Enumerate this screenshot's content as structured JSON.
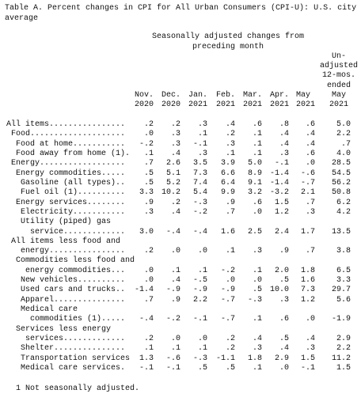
{
  "title": "Table A. Percent changes in CPI for All Urban Consumers (CPI-U): U.S. city average",
  "spanner": [
    "Seasonally adjusted changes from",
    "preceding month"
  ],
  "columns": [
    [
      "Nov.",
      "2020"
    ],
    [
      "Dec.",
      "2020"
    ],
    [
      "Jan.",
      "2021"
    ],
    [
      "Feb.",
      "2021"
    ],
    [
      "Mar.",
      "2021"
    ],
    [
      "Apr.",
      "2021"
    ],
    [
      "May",
      "2021"
    ],
    [
      "Un-",
      "adjusted",
      "12-mos.",
      "ended",
      "May",
      "2021"
    ]
  ],
  "rows": [
    {
      "label": [
        "All items................"
      ],
      "values": [
        ".2",
        ".2",
        ".3",
        ".4",
        ".6",
        ".8",
        ".6",
        "5.0"
      ]
    },
    {
      "label": [
        "Food...................."
      ],
      "values": [
        ".0",
        ".3",
        ".1",
        ".2",
        ".1",
        ".4",
        ".4",
        "2.2"
      ]
    },
    {
      "label": [
        "Food at home..........."
      ],
      "values": [
        "-.2",
        ".3",
        "-.1",
        ".3",
        ".1",
        ".4",
        ".4",
        ".7"
      ]
    },
    {
      "label": [
        "Food away from home (1)."
      ],
      "values": [
        ".1",
        ".4",
        ".3",
        ".1",
        ".1",
        ".3",
        ".6",
        "4.0"
      ]
    },
    {
      "label": [
        "Energy.................."
      ],
      "values": [
        ".7",
        "2.6",
        "3.5",
        "3.9",
        "5.0",
        "-.1",
        ".0",
        "28.5"
      ]
    },
    {
      "label": [
        "Energy commodities....."
      ],
      "values": [
        ".5",
        "5.1",
        "7.3",
        "6.6",
        "8.9",
        "-1.4",
        "-.6",
        "54.5"
      ]
    },
    {
      "label": [
        "Gasoline (all types).."
      ],
      "values": [
        ".5",
        "5.2",
        "7.4",
        "6.4",
        "9.1",
        "-1.4",
        "-.7",
        "56.2"
      ]
    },
    {
      "label": [
        "Fuel oil (1).........."
      ],
      "values": [
        "3.3",
        "10.2",
        "5.4",
        "9.9",
        "3.2",
        "-3.2",
        "2.1",
        "50.8"
      ]
    },
    {
      "label": [
        "Energy services........"
      ],
      "values": [
        ".9",
        ".2",
        "-.3",
        ".9",
        ".6",
        "1.5",
        ".7",
        "6.2"
      ]
    },
    {
      "label": [
        "Electricity..........."
      ],
      "values": [
        ".3",
        ".4",
        "-.2",
        ".7",
        ".0",
        "1.2",
        ".3",
        "4.2"
      ]
    },
    {
      "label": [
        "Utility (piped) gas",
        "service............."
      ],
      "values": [
        "3.0",
        "-.4",
        "-.4",
        "1.6",
        "2.5",
        "2.4",
        "1.7",
        "13.5"
      ]
    },
    {
      "label": [
        "All items less food and",
        "energy................"
      ],
      "values": [
        ".2",
        ".0",
        ".0",
        ".1",
        ".3",
        ".9",
        ".7",
        "3.8"
      ]
    },
    {
      "label": [
        "Commodities less food and",
        "energy commodities..."
      ],
      "values": [
        ".0",
        ".1",
        ".1",
        "-.2",
        ".1",
        "2.0",
        "1.8",
        "6.5"
      ]
    },
    {
      "label": [
        "New vehicles.........."
      ],
      "values": [
        ".0",
        ".4",
        "-.5",
        ".0",
        ".0",
        ".5",
        "1.6",
        "3.3"
      ]
    },
    {
      "label": [
        "Used cars and trucks.."
      ],
      "values": [
        "-1.4",
        "-.9",
        "-.9",
        "-.9",
        ".5",
        "10.0",
        "7.3",
        "29.7"
      ]
    },
    {
      "label": [
        "Apparel..............."
      ],
      "values": [
        ".7",
        ".9",
        "2.2",
        "-.7",
        "-.3",
        ".3",
        "1.2",
        "5.6"
      ]
    },
    {
      "label": [
        "Medical care",
        "commodities (1)....."
      ],
      "values": [
        "-.4",
        "-.2",
        "-.1",
        "-.7",
        ".1",
        ".6",
        ".0",
        "-1.9"
      ]
    },
    {
      "label": [
        "Services less energy",
        "services............."
      ],
      "values": [
        ".2",
        ".0",
        ".0",
        ".2",
        ".4",
        ".5",
        ".4",
        "2.9"
      ]
    },
    {
      "label": [
        "Shelter..............."
      ],
      "values": [
        ".1",
        ".1",
        ".1",
        ".2",
        ".3",
        ".4",
        ".3",
        "2.2"
      ]
    },
    {
      "label": [
        "Transportation services"
      ],
      "values": [
        "1.3",
        "-.6",
        "-.3",
        "-1.1",
        "1.8",
        "2.9",
        "1.5",
        "11.2"
      ]
    },
    {
      "label": [
        "Medical care services."
      ],
      "values": [
        "-.1",
        "-.1",
        ".5",
        ".5",
        ".1",
        ".0",
        "-.1",
        "1.5"
      ]
    }
  ],
  "footnote": "1 Not seasonally adjusted."
}
